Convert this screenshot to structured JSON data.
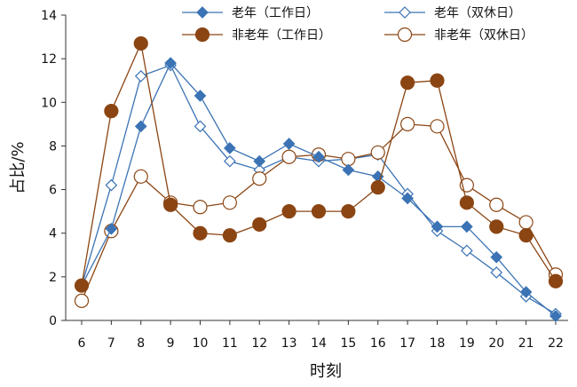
{
  "chart_data": {
    "type": "line",
    "title": "",
    "xlabel": "时刻",
    "ylabel": "占比/%",
    "x": [
      6,
      7,
      8,
      9,
      10,
      11,
      12,
      13,
      14,
      15,
      16,
      17,
      18,
      19,
      20,
      21,
      22
    ],
    "ylim": [
      0,
      14
    ],
    "yticks": [
      0,
      2,
      4,
      6,
      8,
      10,
      12,
      14
    ],
    "grid": false,
    "legend_position": "top",
    "series": [
      {
        "name": "老年（工作日）",
        "color": "#3b73b4",
        "marker": "diamond",
        "filled": true,
        "values": [
          1.6,
          4.2,
          8.9,
          11.8,
          10.3,
          7.9,
          7.3,
          8.1,
          7.5,
          6.9,
          6.6,
          5.6,
          4.3,
          4.3,
          2.9,
          1.3,
          0.2
        ]
      },
      {
        "name": "老年（双休日）",
        "color": "#3b73b4",
        "marker": "diamond",
        "filled": false,
        "values": [
          1.6,
          6.2,
          11.2,
          11.7,
          8.9,
          7.3,
          6.9,
          7.5,
          7.3,
          7.4,
          7.6,
          5.8,
          4.1,
          3.2,
          2.2,
          1.1,
          0.3
        ]
      },
      {
        "name": "非老年（工作日）",
        "color": "#8b4513",
        "marker": "circle",
        "filled": true,
        "values": [
          1.6,
          9.6,
          12.7,
          5.3,
          4.0,
          3.9,
          4.4,
          5.0,
          5.0,
          5.0,
          6.1,
          10.9,
          11.0,
          5.4,
          4.3,
          3.9,
          1.8
        ]
      },
      {
        "name": "非老年（双休日）",
        "color": "#8b4513",
        "marker": "circle",
        "filled": false,
        "values": [
          0.9,
          4.1,
          6.6,
          5.4,
          5.2,
          5.4,
          6.5,
          7.5,
          7.6,
          7.4,
          7.7,
          9.0,
          8.9,
          6.2,
          5.3,
          4.5,
          2.1
        ]
      }
    ]
  }
}
